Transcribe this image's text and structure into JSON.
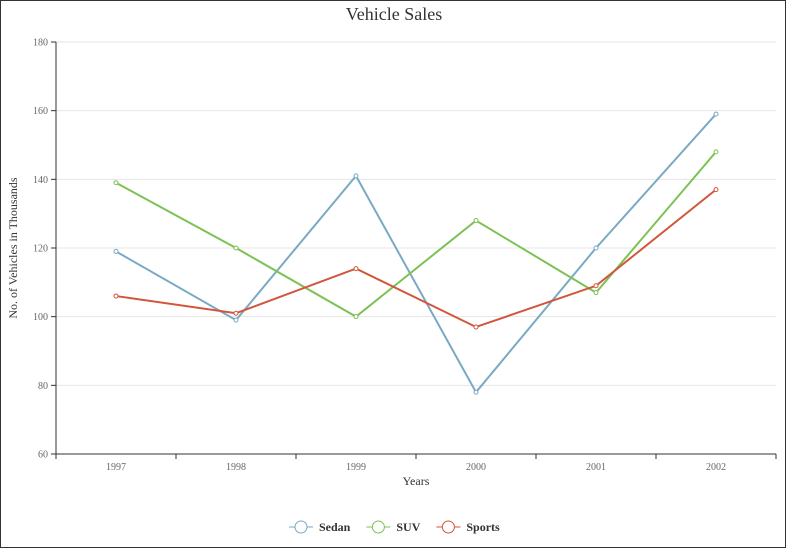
{
  "chart_data": {
    "type": "line",
    "title": "Vehicle Sales",
    "xlabel": "Years",
    "ylabel": "No. of Vehicles in Thousands",
    "categories": [
      "1997",
      "1998",
      "1999",
      "2000",
      "2001",
      "2002"
    ],
    "ylim": [
      60,
      180
    ],
    "yticks": [
      60,
      80,
      100,
      120,
      140,
      160,
      180
    ],
    "grid": true,
    "legend_position": "bottom",
    "series": [
      {
        "name": "Sedan",
        "color": "#7aa9c4",
        "values": [
          119,
          99,
          141,
          78,
          120,
          159
        ]
      },
      {
        "name": "SUV",
        "color": "#7cc253",
        "values": [
          139,
          120,
          100,
          128,
          107,
          148
        ]
      },
      {
        "name": "Sports",
        "color": "#d0573c",
        "values": [
          106,
          101,
          114,
          97,
          109,
          137
        ]
      }
    ]
  }
}
